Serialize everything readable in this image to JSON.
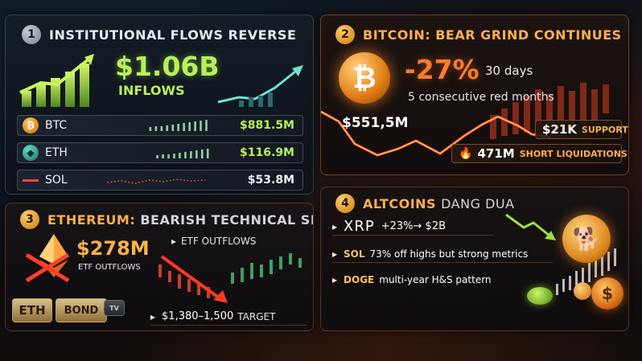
{
  "colors": {
    "green": "#b9ef5a",
    "orange": "#ff7a2b",
    "gold": "#ffae52",
    "red": "#e44b3a",
    "teal": "#5fe0c2"
  },
  "section1": {
    "number": "1",
    "title": "INSTITUTIONAL FLOWS REVERSE",
    "amount": "$1.06B",
    "amount_label": "INFLOWS",
    "rows": [
      {
        "icon": "bitcoin-icon",
        "symbol": "BTC",
        "value": "$881.5M"
      },
      {
        "icon": "ethereum-icon",
        "symbol": "ETH",
        "value": "$116.9M"
      },
      {
        "icon": "solana-icon",
        "symbol": "SOL",
        "value": "$53.8M"
      }
    ]
  },
  "section2": {
    "number": "2",
    "title": "BITCOIN: BEAR GRIND CONTINUES",
    "change": "-27%",
    "period": "30 days",
    "note": "5 consecutive red months",
    "price": "$551,5M",
    "support": "$21K",
    "support_label": "SUPPORT",
    "liquidations": "471M",
    "liquidations_label": "SHORT LIQUIDATIONS"
  },
  "section3": {
    "number": "3",
    "title_strong": "ETHEREUM:",
    "title_rest": "BEARISH TECHNICAL SIGNAL",
    "amount": "$278M",
    "amount_label": "ETF OUTFLOWS",
    "chart_label": "ETF OUTFLOWS",
    "target": "$1,380–1,500",
    "target_label": "TARGET",
    "box_eth": "ETH",
    "box_bond": "BOND",
    "box_tv": "TV"
  },
  "section4": {
    "number": "4",
    "title_strong": "ALTCOINS",
    "title_rest": "DANG DUA",
    "rows": [
      {
        "lead": "XRP",
        "text": "+23%→ $2B"
      },
      {
        "lead": "SOL",
        "text": "73% off highs but strong metrics"
      },
      {
        "lead": "DOGE",
        "text": "multi-year H&S pattern"
      }
    ]
  }
}
